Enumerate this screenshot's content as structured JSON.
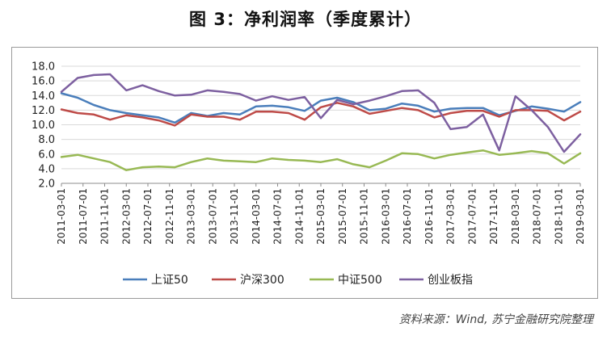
{
  "title": "图 3：净利润率（季度累计）",
  "source": "资料来源：Wind, 苏宁金融研究院整理",
  "chart_data": {
    "type": "line",
    "ylim": [
      2.0,
      18.0
    ],
    "yticks": [
      "2.0",
      "4.0",
      "6.0",
      "8.0",
      "10.0",
      "12.0",
      "14.0",
      "16.0",
      "18.0"
    ],
    "grid": true,
    "legend_position": "bottom",
    "x": [
      "2011-03-01",
      "2011-06-01",
      "2011-09-01",
      "2011-12-01",
      "2012-03-01",
      "2012-06-01",
      "2012-09-01",
      "2012-12-01",
      "2013-03-01",
      "2013-06-01",
      "2013-09-01",
      "2013-12-01",
      "2014-03-01",
      "2014-06-01",
      "2014-09-01",
      "2014-12-01",
      "2015-03-01",
      "2015-06-01",
      "2015-09-01",
      "2015-12-01",
      "2016-03-01",
      "2016-06-01",
      "2016-09-01",
      "2016-12-01",
      "2017-03-01",
      "2017-06-01",
      "2017-09-01",
      "2017-12-01",
      "2018-03-01",
      "2018-06-01",
      "2018-09-01",
      "2018-12-01",
      "2019-03-01"
    ],
    "xticks": [
      "2011-03-01",
      "2011-07-01",
      "2011-11-01",
      "2012-03-01",
      "2012-07-01",
      "2012-11-01",
      "2013-03-01",
      "2013-07-01",
      "2013-11-01",
      "2014-03-01",
      "2014-07-01",
      "2014-11-01",
      "2015-03-01",
      "2015-07-01",
      "2015-11-01",
      "2016-03-01",
      "2016-07-01",
      "2016-11-01",
      "2017-03-01",
      "2017-07-01",
      "2017-11-01",
      "2018-03-01",
      "2018-07-01",
      "2018-11-01",
      "2019-03-01"
    ],
    "series": [
      {
        "name": "上证50",
        "color": "#4a7ebb",
        "values": [
          14.3,
          13.7,
          12.7,
          12.0,
          11.6,
          11.3,
          11.0,
          10.3,
          11.6,
          11.2,
          11.6,
          11.4,
          12.5,
          12.6,
          12.4,
          11.9,
          13.3,
          13.7,
          13.1,
          12.0,
          12.2,
          12.9,
          12.6,
          11.8,
          12.2,
          12.3,
          12.3,
          11.3,
          11.9,
          12.5,
          12.2,
          11.8,
          13.1
        ]
      },
      {
        "name": "沪深300",
        "color": "#be4b48",
        "values": [
          12.1,
          11.6,
          11.4,
          10.7,
          11.3,
          11.0,
          10.6,
          9.9,
          11.4,
          11.1,
          11.1,
          10.7,
          11.8,
          11.8,
          11.6,
          10.7,
          12.4,
          13.0,
          12.5,
          11.5,
          11.9,
          12.3,
          12.0,
          11.0,
          11.6,
          11.9,
          11.9,
          11.1,
          12.0,
          12.0,
          11.9,
          10.6,
          11.8
        ]
      },
      {
        "name": "中证500",
        "color": "#98b954",
        "values": [
          5.6,
          5.9,
          5.4,
          4.9,
          3.8,
          4.2,
          4.3,
          4.2,
          4.9,
          5.4,
          5.1,
          5.0,
          4.9,
          5.4,
          5.2,
          5.1,
          4.9,
          5.3,
          4.6,
          4.2,
          5.1,
          6.1,
          6.0,
          5.4,
          5.9,
          6.2,
          6.5,
          5.9,
          6.1,
          6.4,
          6.1,
          4.7,
          6.1
        ]
      },
      {
        "name": "创业板指",
        "color": "#7d60a0",
        "values": [
          14.5,
          16.4,
          16.8,
          16.9,
          14.7,
          15.4,
          14.6,
          14.0,
          14.1,
          14.7,
          14.5,
          14.2,
          13.3,
          13.9,
          13.4,
          13.8,
          10.9,
          13.4,
          12.8,
          13.3,
          13.9,
          14.6,
          14.7,
          13.0,
          9.4,
          9.7,
          11.4,
          6.5,
          13.9,
          12.0,
          9.7,
          6.3,
          8.7
        ]
      }
    ]
  }
}
